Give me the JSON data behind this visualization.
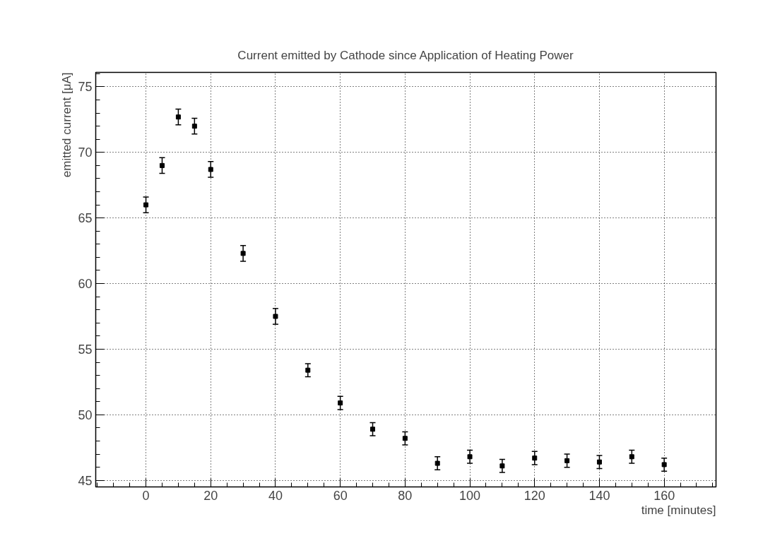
{
  "chart_data": {
    "type": "scatter",
    "title": "Current emitted by Cathode since Application of Heating Power",
    "xlabel": "time [minutes]",
    "ylabel": "emitted current [μA]",
    "x": [
      0,
      5,
      10,
      15,
      20,
      30,
      40,
      50,
      60,
      70,
      80,
      90,
      100,
      110,
      120,
      130,
      140,
      150,
      160
    ],
    "series": [
      {
        "color": "#000000",
        "values": [
          66.0,
          69.0,
          72.7,
          72.0,
          68.7,
          62.3,
          57.5,
          53.4,
          50.9,
          48.9,
          48.2,
          46.3,
          46.8,
          46.1,
          46.7,
          46.5,
          46.4,
          46.8,
          46.2
        ],
        "errors": [
          0.6,
          0.6,
          0.6,
          0.6,
          0.6,
          0.6,
          0.6,
          0.5,
          0.5,
          0.5,
          0.5,
          0.5,
          0.5,
          0.5,
          0.5,
          0.5,
          0.5,
          0.5,
          0.5
        ]
      }
    ],
    "marker": "square",
    "xlim": [
      -15.5,
      176
    ],
    "ylim": [
      44.5,
      76.1
    ],
    "xticks": [
      {
        "value": -15,
        "label": null
      },
      {
        "value": -10,
        "label": null
      },
      {
        "value": -5,
        "label": null
      },
      0,
      {
        "value": 5,
        "label": null
      },
      {
        "value": 10,
        "label": null
      },
      {
        "value": 15,
        "label": null
      },
      20,
      {
        "value": 25,
        "label": null
      },
      {
        "value": 30,
        "label": null
      },
      {
        "value": 35,
        "label": null
      },
      40,
      {
        "value": 45,
        "label": null
      },
      {
        "value": 50,
        "label": null
      },
      {
        "value": 55,
        "label": null
      },
      60,
      {
        "value": 65,
        "label": null
      },
      {
        "value": 70,
        "label": null
      },
      {
        "value": 75,
        "label": null
      },
      80,
      {
        "value": 85,
        "label": null
      },
      {
        "value": 90,
        "label": null
      },
      {
        "value": 95,
        "label": null
      },
      100,
      {
        "value": 105,
        "label": null
      },
      {
        "value": 110,
        "label": null
      },
      {
        "value": 115,
        "label": null
      },
      120,
      {
        "value": 125,
        "label": null
      },
      {
        "value": 130,
        "label": null
      },
      {
        "value": 135,
        "label": null
      },
      140,
      {
        "value": 145,
        "label": null
      },
      {
        "value": 150,
        "label": null
      },
      {
        "value": 155,
        "label": null
      },
      160,
      {
        "value": 165,
        "label": null
      },
      {
        "value": 170,
        "label": null
      },
      {
        "value": 175,
        "label": null
      }
    ],
    "yticks": [
      45,
      {
        "value": 46,
        "label": null
      },
      {
        "value": 47,
        "label": null
      },
      {
        "value": 48,
        "label": null
      },
      {
        "value": 49,
        "label": null
      },
      50,
      {
        "value": 51,
        "label": null
      },
      {
        "value": 52,
        "label": null
      },
      {
        "value": 53,
        "label": null
      },
      {
        "value": 54,
        "label": null
      },
      55,
      {
        "value": 56,
        "label": null
      },
      {
        "value": 57,
        "label": null
      },
      {
        "value": 58,
        "label": null
      },
      {
        "value": 59,
        "label": null
      },
      60,
      {
        "value": 61,
        "label": null
      },
      {
        "value": 62,
        "label": null
      },
      {
        "value": 63,
        "label": null
      },
      {
        "value": 64,
        "label": null
      },
      65,
      {
        "value": 66,
        "label": null
      },
      {
        "value": 67,
        "label": null
      },
      {
        "value": 68,
        "label": null
      },
      {
        "value": 69,
        "label": null
      },
      70,
      {
        "value": 71,
        "label": null
      },
      {
        "value": 72,
        "label": null
      },
      {
        "value": 73,
        "label": null
      },
      {
        "value": 74,
        "label": null
      },
      75,
      {
        "value": 76,
        "label": null
      }
    ],
    "grid": true
  }
}
